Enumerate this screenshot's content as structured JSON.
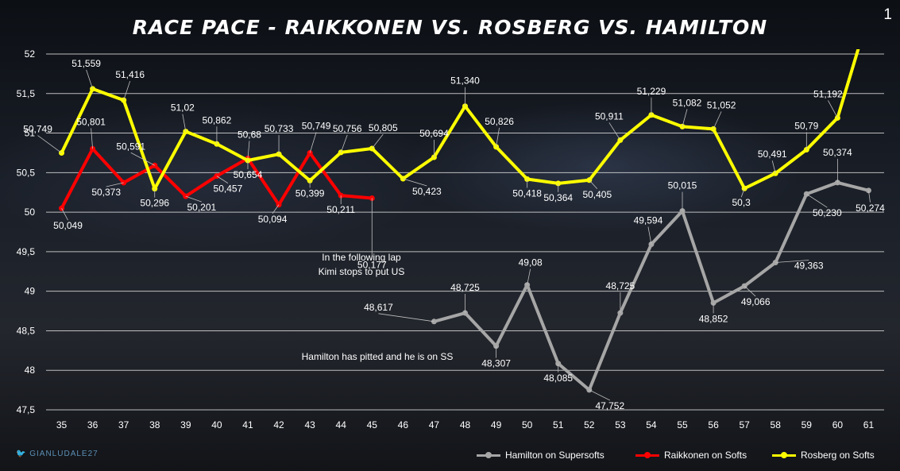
{
  "title": "RACE PACE - RAIKKONEN VS. ROSBERG VS. HAMILTON",
  "page_number": "1",
  "watermark": "GIANLUDALE27",
  "annotations": {
    "kimi": [
      "In the following lap",
      "Kimi stops to put US"
    ],
    "hamilton": "Hamilton has pitted and he is on SS"
  },
  "chart_data": {
    "type": "line",
    "title": "RACE PACE - RAIKKONEN VS. ROSBERG VS. HAMILTON",
    "xlabel": "",
    "ylabel": "",
    "x": [
      35,
      36,
      37,
      38,
      39,
      40,
      41,
      42,
      43,
      44,
      45,
      46,
      47,
      48,
      49,
      50,
      51,
      52,
      53,
      54,
      55,
      56,
      57,
      58,
      59,
      60,
      61
    ],
    "ylim": [
      47.5,
      52
    ],
    "yticks": [
      47.5,
      48,
      48.5,
      49,
      49.5,
      50,
      50.5,
      51,
      51.5,
      52
    ],
    "ytick_labels": [
      "47,5",
      "48",
      "48,5",
      "49",
      "49,5",
      "50",
      "50,5",
      "51",
      "51,5",
      "52"
    ],
    "grid": true,
    "legend_position": "bottom",
    "series": [
      {
        "name": "Hamilton on Supersofts",
        "color": "#a6a6a6",
        "points": [
          {
            "x": 47,
            "y": 48.617,
            "label": "48,617"
          },
          {
            "x": 48,
            "y": 48.725,
            "label": "48,725"
          },
          {
            "x": 49,
            "y": 48.307,
            "label": "48,307"
          },
          {
            "x": 50,
            "y": 49.08,
            "label": "49,08"
          },
          {
            "x": 51,
            "y": 48.085,
            "label": "48,085"
          },
          {
            "x": 52,
            "y": 47.752,
            "label": "47,752"
          },
          {
            "x": 53,
            "y": 48.725,
            "label": "48,725"
          },
          {
            "x": 54,
            "y": 49.594,
            "label": "49,594"
          },
          {
            "x": 55,
            "y": 50.015,
            "label": "50,015"
          },
          {
            "x": 56,
            "y": 48.852,
            "label": "48,852"
          },
          {
            "x": 57,
            "y": 49.066,
            "label": "49,066"
          },
          {
            "x": 58,
            "y": 49.363,
            "label": "49,363"
          },
          {
            "x": 59,
            "y": 50.23,
            "label": "50,230"
          },
          {
            "x": 60,
            "y": 50.374,
            "label": "50,374"
          },
          {
            "x": 61,
            "y": 50.274,
            "label": "50,274"
          }
        ]
      },
      {
        "name": "Raikkonen on Softs",
        "color": "#ff0000",
        "points": [
          {
            "x": 35,
            "y": 50.049,
            "label": "50,049"
          },
          {
            "x": 36,
            "y": 50.801,
            "label": "50,801"
          },
          {
            "x": 37,
            "y": 50.373,
            "label": "50,373"
          },
          {
            "x": 38,
            "y": 50.591,
            "label": "50,591"
          },
          {
            "x": 39,
            "y": 50.201,
            "label": "50,201"
          },
          {
            "x": 40,
            "y": 50.457,
            "label": "50,457"
          },
          {
            "x": 41,
            "y": 50.68,
            "label": "50,68"
          },
          {
            "x": 42,
            "y": 50.094,
            "label": "50,094"
          },
          {
            "x": 43,
            "y": 50.749,
            "label": "50,749"
          },
          {
            "x": 44,
            "y": 50.211,
            "label": "50,211"
          },
          {
            "x": 45,
            "y": 50.177,
            "label": "50,177"
          }
        ]
      },
      {
        "name": "Rosberg on Softs",
        "color": "#ffff00",
        "points": [
          {
            "x": 35,
            "y": 50.749,
            "label": "50,749"
          },
          {
            "x": 36,
            "y": 51.559,
            "label": "51,559"
          },
          {
            "x": 37,
            "y": 51.416,
            "label": "51,416"
          },
          {
            "x": 38,
            "y": 50.296,
            "label": "50,296"
          },
          {
            "x": 39,
            "y": 51.02,
            "label": "51,02"
          },
          {
            "x": 40,
            "y": 50.862,
            "label": "50,862"
          },
          {
            "x": 41,
            "y": 50.654,
            "label": "50,654"
          },
          {
            "x": 42,
            "y": 50.733,
            "label": "50,733"
          },
          {
            "x": 43,
            "y": 50.399,
            "label": "50,399"
          },
          {
            "x": 44,
            "y": 50.756,
            "label": "50,756"
          },
          {
            "x": 45,
            "y": 50.805,
            "label": "50,805"
          },
          {
            "x": 46,
            "y": 50.423,
            "label": "50,423"
          },
          {
            "x": 47,
            "y": 50.694,
            "label": "50,694"
          },
          {
            "x": 48,
            "y": 51.34,
            "label": "51,340"
          },
          {
            "x": 49,
            "y": 50.826,
            "label": "50,826"
          },
          {
            "x": 50,
            "y": 50.418,
            "label": "50,418"
          },
          {
            "x": 51,
            "y": 50.364,
            "label": "50,364"
          },
          {
            "x": 52,
            "y": 50.405,
            "label": "50,405"
          },
          {
            "x": 53,
            "y": 50.911,
            "label": "50,911"
          },
          {
            "x": 54,
            "y": 51.229,
            "label": "51,229"
          },
          {
            "x": 55,
            "y": 51.082,
            "label": "51,082"
          },
          {
            "x": 56,
            "y": 51.052,
            "label": "51,052"
          },
          {
            "x": 57,
            "y": 50.3,
            "label": "50,3"
          },
          {
            "x": 58,
            "y": 50.491,
            "label": "50,491"
          },
          {
            "x": 59,
            "y": 50.79,
            "label": "50,79"
          },
          {
            "x": 60,
            "y": 51.192,
            "label": "51,192"
          },
          {
            "x": 61,
            "y": 52.5,
            "label": ""
          }
        ]
      }
    ]
  }
}
